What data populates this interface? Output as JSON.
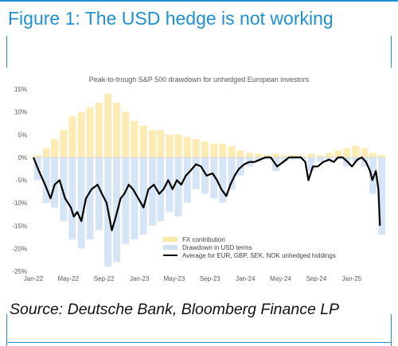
{
  "figure": {
    "title": "Figure 1: The USD hedge is not working",
    "source": "Source: Deutsche Bank, Bloomberg Finance LP",
    "accent_color": "#1e8fd1"
  },
  "chart_data": {
    "type": "line",
    "title": "Peak-to-trough S&P 500 drawdown for unhedged European investors",
    "xlabel": "",
    "ylabel": "",
    "ylim": [
      -25,
      15
    ],
    "xlim": [
      "2022-01-01",
      "2025-04-10"
    ],
    "yticks": [
      15,
      10,
      5,
      0,
      -5,
      -10,
      -15,
      -20,
      -25
    ],
    "ytick_labels": [
      "15%",
      "10%",
      "5%",
      "0%",
      "-5%",
      "-10%",
      "-15%",
      "-20%",
      "-25%"
    ],
    "xticks": [
      "2022-01-01",
      "2022-05-01",
      "2022-09-01",
      "2023-01-01",
      "2023-05-01",
      "2023-09-01",
      "2024-01-01",
      "2024-05-01",
      "2024-09-01",
      "2025-01-01"
    ],
    "xtick_labels": [
      "Jan-22",
      "May-22",
      "Sep-22",
      "Jan-23",
      "May-23",
      "Sep-23",
      "Jan-24",
      "May-24",
      "Sep-24",
      "Jan-25"
    ],
    "grid": false,
    "legend_position": "bottom-right",
    "legend": [
      {
        "label": "FX contribution",
        "color": "#fbe7a6",
        "kind": "bar"
      },
      {
        "label": "Drawdown in USD terms",
        "color": "#cfe0f3",
        "kind": "bar"
      },
      {
        "label": "Average for EUR, GBP, SEK, NOK unhedged holdings",
        "color": "#000000",
        "kind": "line"
      }
    ],
    "series": [
      {
        "name": "FX contribution",
        "kind": "bar",
        "color": "#fbe7a6",
        "x": [
          "2022-01-01",
          "2022-02-01",
          "2022-03-01",
          "2022-04-01",
          "2022-05-01",
          "2022-06-01",
          "2022-07-01",
          "2022-08-01",
          "2022-09-01",
          "2022-10-01",
          "2022-11-01",
          "2022-12-01",
          "2023-01-01",
          "2023-02-01",
          "2023-03-01",
          "2023-04-01",
          "2023-05-01",
          "2023-06-01",
          "2023-07-01",
          "2023-08-01",
          "2023-09-01",
          "2023-10-01",
          "2023-11-01",
          "2023-12-01",
          "2024-01-01",
          "2024-02-01",
          "2024-03-01",
          "2024-04-01",
          "2024-05-01",
          "2024-06-01",
          "2024-07-01",
          "2024-08-01",
          "2024-09-01",
          "2024-10-01",
          "2024-11-01",
          "2024-12-01",
          "2025-01-01",
          "2025-02-01",
          "2025-03-01",
          "2025-04-01"
        ],
        "values": [
          0.5,
          2,
          4,
          6,
          9,
          10,
          11,
          12,
          14,
          12,
          10,
          8,
          7,
          6,
          6,
          5,
          5,
          4.5,
          4,
          3.5,
          3,
          3,
          2.5,
          1.5,
          1,
          0.8,
          0.5,
          0.8,
          0.5,
          0.5,
          0.3,
          0.8,
          0.5,
          1,
          1.5,
          2,
          2.5,
          2,
          1,
          0.5
        ]
      },
      {
        "name": "Drawdown in USD terms",
        "kind": "bar",
        "color": "#cfe0f3",
        "x": [
          "2022-01-01",
          "2022-02-01",
          "2022-03-01",
          "2022-04-01",
          "2022-05-01",
          "2022-06-01",
          "2022-07-01",
          "2022-08-01",
          "2022-09-01",
          "2022-10-01",
          "2022-11-01",
          "2022-12-01",
          "2023-01-01",
          "2023-02-01",
          "2023-03-01",
          "2023-04-01",
          "2023-05-01",
          "2023-06-01",
          "2023-07-01",
          "2023-08-01",
          "2023-09-01",
          "2023-10-01",
          "2023-11-01",
          "2023-12-01",
          "2024-01-01",
          "2024-02-01",
          "2024-03-01",
          "2024-04-01",
          "2024-05-01",
          "2024-06-01",
          "2024-07-01",
          "2024-08-01",
          "2024-09-01",
          "2024-10-01",
          "2024-11-01",
          "2024-12-01",
          "2025-01-01",
          "2025-02-01",
          "2025-03-01",
          "2025-04-01"
        ],
        "values": [
          -5,
          -10,
          -11,
          -14,
          -18,
          -20,
          -18,
          -16,
          -24,
          -23,
          -19,
          -18,
          -17,
          -15,
          -14,
          -12,
          -13,
          -10,
          -7,
          -8,
          -9,
          -10,
          -7,
          -4,
          -2,
          -1,
          -0.5,
          -3,
          -1,
          -0.5,
          -0.5,
          -3,
          -1,
          -1,
          -0.5,
          -2,
          -1,
          -2,
          -8,
          -17
        ]
      },
      {
        "name": "Average for EUR, GBP, SEK, NOK unhedged holdings",
        "kind": "line",
        "color": "#000000",
        "x": [
          "2022-01-01",
          "2022-01-20",
          "2022-02-10",
          "2022-03-01",
          "2022-03-15",
          "2022-04-01",
          "2022-04-20",
          "2022-05-10",
          "2022-05-20",
          "2022-06-01",
          "2022-06-15",
          "2022-07-01",
          "2022-07-20",
          "2022-08-10",
          "2022-08-25",
          "2022-09-10",
          "2022-09-28",
          "2022-10-12",
          "2022-10-28",
          "2022-11-10",
          "2022-11-25",
          "2022-12-10",
          "2022-12-28",
          "2023-01-15",
          "2023-02-01",
          "2023-02-20",
          "2023-03-10",
          "2023-03-25",
          "2023-04-10",
          "2023-04-25",
          "2023-05-10",
          "2023-05-25",
          "2023-06-10",
          "2023-06-25",
          "2023-07-15",
          "2023-08-01",
          "2023-08-20",
          "2023-09-10",
          "2023-09-25",
          "2023-10-10",
          "2023-10-27",
          "2023-11-10",
          "2023-11-25",
          "2023-12-10",
          "2023-12-28",
          "2024-01-15",
          "2024-02-01",
          "2024-02-20",
          "2024-03-10",
          "2024-03-28",
          "2024-04-19",
          "2024-05-10",
          "2024-05-30",
          "2024-06-20",
          "2024-07-10",
          "2024-07-25",
          "2024-08-05",
          "2024-08-20",
          "2024-09-06",
          "2024-09-25",
          "2024-10-15",
          "2024-10-31",
          "2024-11-15",
          "2024-12-01",
          "2024-12-18",
          "2025-01-02",
          "2025-01-20",
          "2025-02-05",
          "2025-02-19",
          "2025-03-05",
          "2025-03-13",
          "2025-03-25",
          "2025-04-03",
          "2025-04-08"
        ],
        "values": [
          0,
          -3,
          -6,
          -9,
          -6,
          -5,
          -9,
          -11,
          -13,
          -12,
          -14,
          -9,
          -7,
          -6,
          -8,
          -10,
          -16,
          -13,
          -9,
          -8,
          -6,
          -7,
          -9,
          -11,
          -7,
          -6,
          -8,
          -7,
          -5,
          -7,
          -5,
          -6,
          -4,
          -3,
          -1.5,
          -2,
          -4,
          -3.5,
          -5,
          -7,
          -8.5,
          -6,
          -4,
          -2.5,
          -1.5,
          -1,
          -1,
          -0.5,
          0,
          0,
          -2,
          -1,
          0,
          0,
          0,
          -1,
          -5,
          -2,
          -2,
          -1,
          -0.5,
          -1,
          0,
          0,
          -1,
          -2,
          -0.5,
          0,
          -1,
          -3,
          -5,
          -3,
          -7,
          -15
        ]
      }
    ]
  }
}
